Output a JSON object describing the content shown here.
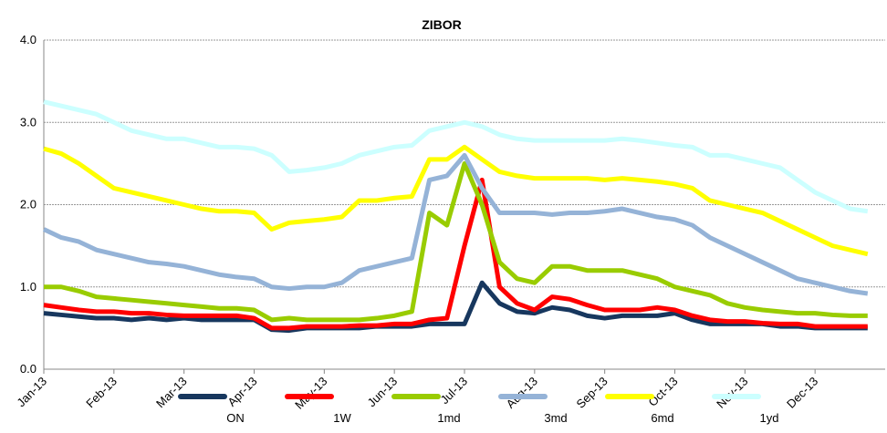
{
  "chart_data": {
    "type": "line",
    "title": "ZIBOR",
    "categories": [
      "Jan-13",
      null,
      null,
      null,
      "Feb-13",
      null,
      null,
      null,
      "Mar-13",
      null,
      null,
      null,
      "Apr-13",
      null,
      null,
      null,
      "May-13",
      null,
      null,
      null,
      "Jun-13",
      null,
      null,
      null,
      "Jul-13",
      null,
      null,
      null,
      "Aug-13",
      null,
      null,
      null,
      "Sep-13",
      null,
      null,
      null,
      "Oct-13",
      null,
      null,
      null,
      "Nov-13",
      null,
      null,
      null,
      "Dec-13",
      null,
      null,
      null
    ],
    "series": [
      {
        "name": "ON",
        "color": "#17375e",
        "values": [
          0.68,
          0.66,
          0.64,
          0.62,
          0.62,
          0.6,
          0.62,
          0.6,
          0.62,
          0.6,
          0.6,
          0.6,
          0.6,
          0.48,
          0.47,
          0.5,
          0.5,
          0.5,
          0.5,
          0.52,
          0.52,
          0.52,
          0.55,
          0.55,
          0.55,
          1.05,
          0.8,
          0.7,
          0.68,
          0.75,
          0.72,
          0.65,
          0.62,
          0.65,
          0.65,
          0.65,
          0.68,
          0.6,
          0.55,
          0.55,
          0.55,
          0.55,
          0.52,
          0.52,
          0.5,
          0.5,
          0.5,
          0.5
        ]
      },
      {
        "name": "1W",
        "color": "#ff0000",
        "values": [
          0.78,
          0.75,
          0.72,
          0.7,
          0.7,
          0.68,
          0.68,
          0.66,
          0.65,
          0.65,
          0.65,
          0.65,
          0.62,
          0.5,
          0.5,
          0.52,
          0.52,
          0.52,
          0.53,
          0.53,
          0.55,
          0.55,
          0.6,
          0.62,
          1.5,
          2.3,
          1.0,
          0.8,
          0.72,
          0.88,
          0.85,
          0.78,
          0.72,
          0.72,
          0.72,
          0.75,
          0.72,
          0.65,
          0.6,
          0.58,
          0.58,
          0.56,
          0.55,
          0.55,
          0.52,
          0.52,
          0.52,
          0.52
        ]
      },
      {
        "name": "1md",
        "color": "#99cc00",
        "values": [
          1.0,
          1.0,
          0.95,
          0.88,
          0.86,
          0.84,
          0.82,
          0.8,
          0.78,
          0.76,
          0.74,
          0.74,
          0.72,
          0.6,
          0.62,
          0.6,
          0.6,
          0.6,
          0.6,
          0.62,
          0.65,
          0.7,
          1.9,
          1.75,
          2.5,
          2.0,
          1.3,
          1.1,
          1.05,
          1.25,
          1.25,
          1.2,
          1.2,
          1.2,
          1.15,
          1.1,
          1.0,
          0.95,
          0.9,
          0.8,
          0.75,
          0.72,
          0.7,
          0.68,
          0.68,
          0.66,
          0.65,
          0.65
        ]
      },
      {
        "name": "3md",
        "color": "#95b3d7",
        "values": [
          1.7,
          1.6,
          1.55,
          1.45,
          1.4,
          1.35,
          1.3,
          1.28,
          1.25,
          1.2,
          1.15,
          1.12,
          1.1,
          1.0,
          0.98,
          1.0,
          1.0,
          1.05,
          1.2,
          1.25,
          1.3,
          1.35,
          2.3,
          2.35,
          2.6,
          2.2,
          1.9,
          1.9,
          1.9,
          1.88,
          1.9,
          1.9,
          1.92,
          1.95,
          1.9,
          1.85,
          1.82,
          1.75,
          1.6,
          1.5,
          1.4,
          1.3,
          1.2,
          1.1,
          1.05,
          1.0,
          0.95,
          0.92
        ]
      },
      {
        "name": "6md",
        "color": "#ffff00",
        "values": [
          2.68,
          2.62,
          2.5,
          2.35,
          2.2,
          2.15,
          2.1,
          2.05,
          2.0,
          1.95,
          1.92,
          1.92,
          1.9,
          1.7,
          1.78,
          1.8,
          1.82,
          1.85,
          2.05,
          2.05,
          2.08,
          2.1,
          2.55,
          2.55,
          2.7,
          2.55,
          2.4,
          2.35,
          2.32,
          2.32,
          2.32,
          2.32,
          2.3,
          2.32,
          2.3,
          2.28,
          2.25,
          2.2,
          2.05,
          2.0,
          1.95,
          1.9,
          1.8,
          1.7,
          1.6,
          1.5,
          1.45,
          1.4
        ]
      },
      {
        "name": "1yd",
        "color": "#ccffff",
        "values": [
          3.25,
          3.2,
          3.15,
          3.1,
          3.0,
          2.9,
          2.85,
          2.8,
          2.8,
          2.75,
          2.7,
          2.7,
          2.68,
          2.6,
          2.4,
          2.42,
          2.45,
          2.5,
          2.6,
          2.65,
          2.7,
          2.72,
          2.9,
          2.95,
          3.0,
          2.95,
          2.85,
          2.8,
          2.78,
          2.78,
          2.78,
          2.78,
          2.78,
          2.8,
          2.78,
          2.75,
          2.72,
          2.7,
          2.6,
          2.6,
          2.55,
          2.5,
          2.45,
          2.3,
          2.15,
          2.05,
          1.95,
          1.92
        ]
      }
    ],
    "ylim": [
      0,
      4
    ],
    "yticks": [
      {
        "value": 0,
        "label": "0.0"
      },
      {
        "value": 1,
        "label": "1.0"
      },
      {
        "value": 2,
        "label": "2.0"
      },
      {
        "value": 3,
        "label": "3.0"
      },
      {
        "value": 4,
        "label": "4.0"
      }
    ],
    "grid": true,
    "legend": "bottom"
  }
}
